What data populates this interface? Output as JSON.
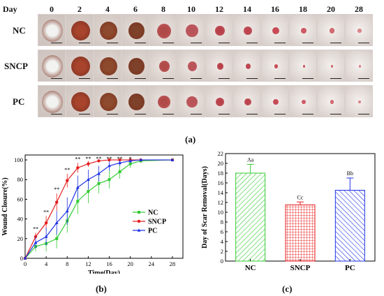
{
  "photo_panel": {
    "day_title": "Day",
    "days": [
      "0",
      "2",
      "4",
      "6",
      "8",
      "10",
      "12",
      "14",
      "16",
      "18",
      "20",
      "28"
    ],
    "rows": [
      "NC",
      "SNCP",
      "PC"
    ],
    "label": "(a)"
  },
  "panel_b_label": "(b)",
  "panel_c_label": "(c)",
  "colors": {
    "NC": "#33cc33",
    "SNCP": "#e61e1e",
    "PC": "#1e32e6"
  },
  "chart_data": [
    {
      "type": "line",
      "xlabel": "Time(Day)",
      "ylabel": "Wound Closure(%)",
      "xlim": [
        0,
        30
      ],
      "ylim": [
        0,
        105
      ],
      "xticks": [
        0,
        4,
        8,
        12,
        16,
        20,
        24,
        28
      ],
      "yticks": [
        0,
        20,
        40,
        60,
        80,
        100
      ],
      "legend": "right",
      "x": [
        0,
        2,
        4,
        6,
        8,
        10,
        12,
        14,
        16,
        18,
        20,
        22,
        28
      ],
      "series": [
        {
          "name": "NC",
          "values": [
            0,
            12,
            15,
            20,
            38,
            58,
            68,
            76,
            80,
            88,
            96,
            99,
            100
          ],
          "errors": [
            0,
            5,
            8,
            10,
            12,
            13,
            12,
            10,
            9,
            7,
            4,
            2,
            0
          ]
        },
        {
          "name": "SNCP",
          "values": [
            0,
            22,
            36,
            57,
            79,
            92,
            96,
            99,
            100,
            100,
            100,
            100,
            100
          ],
          "errors": [
            0,
            4,
            7,
            9,
            7,
            5,
            3,
            1,
            0,
            0,
            0,
            0,
            0
          ]
        },
        {
          "name": "PC",
          "values": [
            0,
            16,
            22,
            36,
            48,
            72,
            80,
            86,
            94,
            97,
            99,
            100,
            100
          ],
          "errors": [
            0,
            6,
            9,
            12,
            14,
            12,
            10,
            8,
            5,
            3,
            2,
            1,
            0
          ]
        }
      ],
      "significance": [
        {
          "x": 2,
          "label": "**"
        },
        {
          "x": 4,
          "label": "**"
        },
        {
          "x": 6,
          "label": "**"
        },
        {
          "x": 8,
          "label": "**"
        },
        {
          "x": 10,
          "label": "**"
        },
        {
          "x": 12,
          "label": "**"
        },
        {
          "x": 14,
          "label": "**"
        },
        {
          "x": 16,
          "label": "**"
        },
        {
          "x": 18,
          "label": "**"
        },
        {
          "x": 20,
          "label": "*"
        }
      ]
    },
    {
      "type": "bar",
      "ylabel": "Day of Scar Removal(Days)",
      "ylim": [
        0,
        22
      ],
      "yticks": [
        0,
        2,
        4,
        6,
        8,
        10,
        12,
        14,
        16,
        18,
        20,
        22
      ],
      "categories": [
        "NC",
        "SNCP",
        "PC"
      ],
      "values": [
        18,
        11.5,
        14.5
      ],
      "errors": [
        1.8,
        0.6,
        2.5
      ],
      "annotations": [
        "Aa",
        "Cc",
        "Bb"
      ]
    }
  ]
}
